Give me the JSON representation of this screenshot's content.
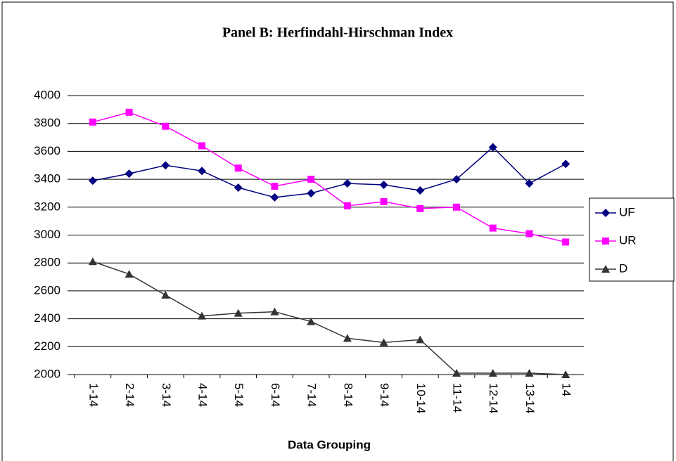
{
  "chart_data": {
    "type": "line",
    "title": "Panel B: Herfindahl-Hirschman Index",
    "x_label": "Data Grouping",
    "categories": [
      "1-14",
      "2-14",
      "3-14",
      "4-14",
      "5-14",
      "6-14",
      "7-14",
      "8-14",
      "9-14",
      "10-14",
      "11-14",
      "12-14",
      "13-14",
      "14"
    ],
    "series": [
      {
        "name": "UF",
        "color": "#000080",
        "marker": "diamond",
        "values": [
          3390,
          3440,
          3500,
          3460,
          3340,
          3270,
          3300,
          3370,
          3360,
          3320,
          3400,
          3630,
          3370,
          3510
        ]
      },
      {
        "name": "UR",
        "color": "#ff00ff",
        "marker": "square",
        "values": [
          3810,
          3880,
          3780,
          3640,
          3480,
          3350,
          3400,
          3210,
          3240,
          3190,
          3200,
          3050,
          3010,
          2950
        ]
      },
      {
        "name": "D",
        "color": "#333333",
        "marker": "triangle",
        "values": [
          2810,
          2720,
          2570,
          2420,
          2440,
          2450,
          2380,
          2260,
          2230,
          2250,
          2010,
          2010,
          2010,
          2000
        ]
      }
    ],
    "ylim": [
      2000,
      4000
    ],
    "yticks": [
      2000,
      2200,
      2400,
      2600,
      2800,
      3000,
      3200,
      3400,
      3600,
      3800,
      4000
    ],
    "grid": true,
    "legend": "right"
  }
}
